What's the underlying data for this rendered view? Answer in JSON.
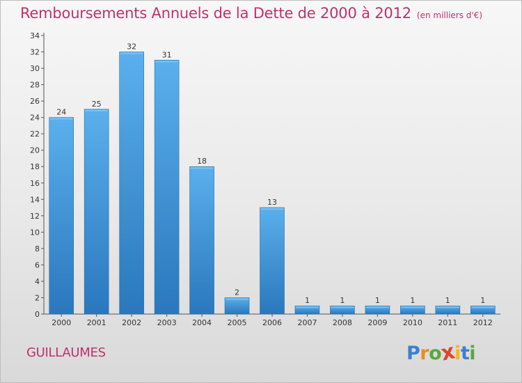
{
  "chart_data": {
    "type": "bar",
    "title": "Remboursements Annuels de la Dette de 2000 à 2012",
    "subtitle": "(en milliers d'€)",
    "categories": [
      "2000",
      "2001",
      "2002",
      "2003",
      "2004",
      "2005",
      "2006",
      "2007",
      "2008",
      "2009",
      "2010",
      "2011",
      "2012"
    ],
    "values": [
      24,
      25,
      32,
      31,
      18,
      2,
      13,
      1,
      1,
      1,
      1,
      1,
      1
    ],
    "ylim": [
      0,
      34
    ],
    "yticks": [
      0,
      2,
      4,
      6,
      8,
      10,
      12,
      14,
      16,
      18,
      20,
      22,
      24,
      26,
      28,
      30,
      32,
      34
    ],
    "xlabel": "",
    "ylabel": "",
    "grid": false,
    "bar_color": "#3a8fd6"
  },
  "footer": {
    "commune": "GUILLAUMES",
    "brand": [
      "P",
      "r",
      "o",
      "x",
      "i",
      "t",
      "i"
    ],
    "brand_colors": [
      "#3b7fd4",
      "#f08a1c",
      "#5aa83c",
      "#e0442c",
      "#f2b81c",
      "#3b7fd4",
      "#5aa83c"
    ]
  }
}
